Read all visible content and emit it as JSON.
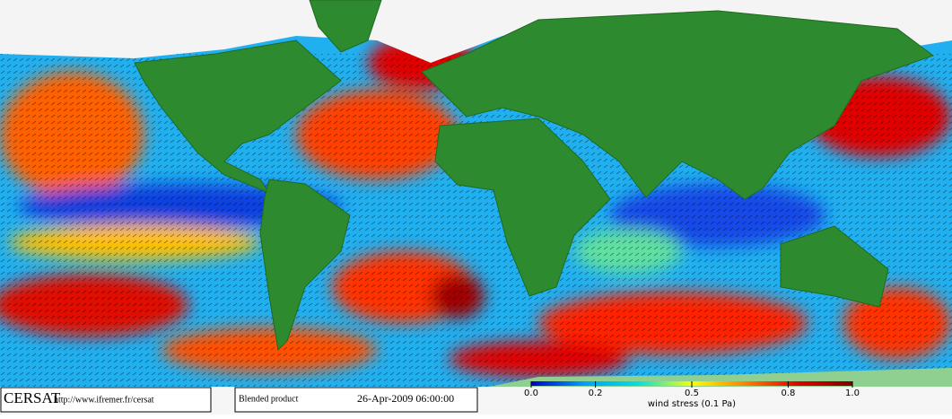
{
  "footer": {
    "logo": "CERSAT",
    "url": "http://www.ifremer.fr/cersat",
    "product": "Blended product",
    "date": "26-Apr-2009 06:00:00"
  },
  "colorbar": {
    "label": "wind stress (0.1 Pa)",
    "lim": [
      0,
      1
    ],
    "ticks": [
      {
        "value": 0,
        "label": "0.0"
      },
      0.2,
      0.5,
      0.8,
      {
        "value": 1,
        "label": "1.0"
      }
    ],
    "colors": [
      "#0000c8",
      "#00a0ff",
      "#00e0e0",
      "#ffff00",
      "#ff8000",
      "#e00000",
      "#800000"
    ]
  }
}
